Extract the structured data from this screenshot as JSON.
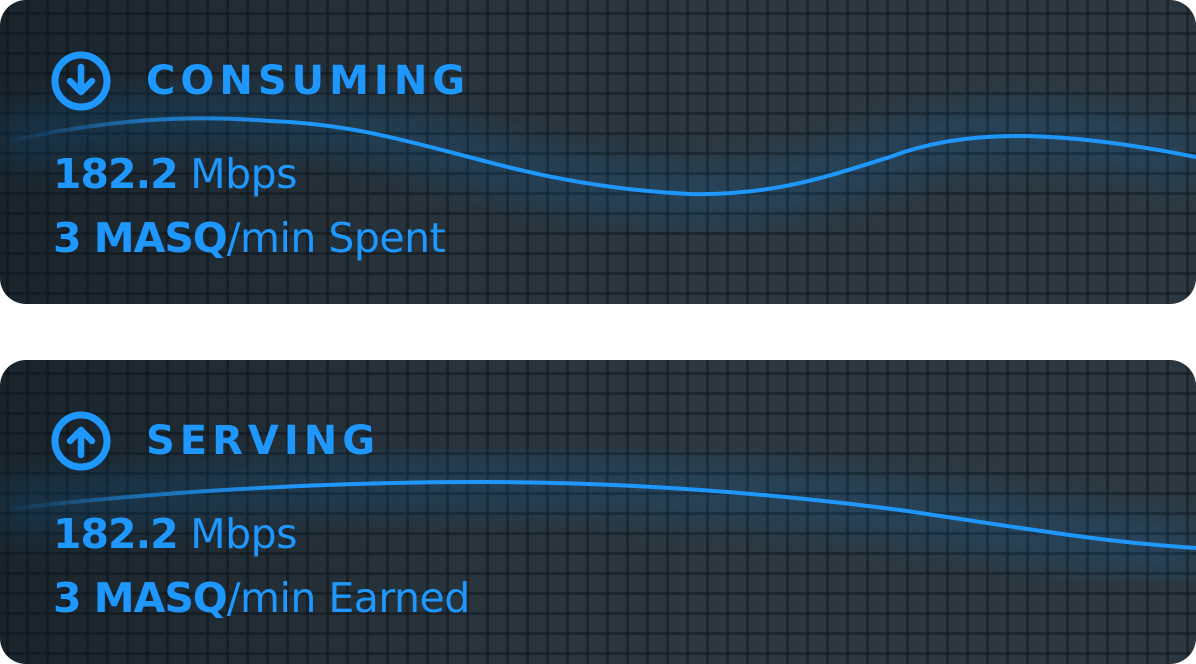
{
  "colors": {
    "accent": "#1e98ff",
    "card_bg": "#2c3841"
  },
  "cards": [
    {
      "id": "consuming",
      "icon": "arrow-down-circle-icon",
      "title": "CONSUMING",
      "speed_value": "182.2",
      "speed_unit": " Mbps",
      "rate_value": "3 MASQ",
      "rate_suffix": "/min Spent"
    },
    {
      "id": "serving",
      "icon": "arrow-up-circle-icon",
      "title": "SERVING",
      "speed_value": "182.2",
      "speed_unit": " Mbps",
      "rate_value": "3 MASQ",
      "rate_suffix": "/min Earned"
    }
  ]
}
